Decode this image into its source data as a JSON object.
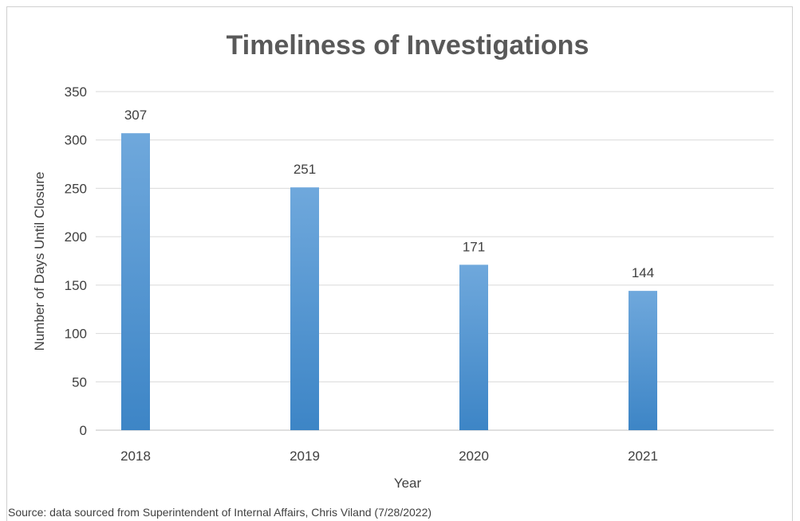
{
  "chart_data": {
    "type": "bar",
    "title": "Timeliness of Investigations",
    "xlabel": "Year",
    "ylabel": "Number of Days Until Closure",
    "categories": [
      "2018",
      "2019",
      "2020",
      "2021"
    ],
    "values": [
      307,
      251,
      171,
      144
    ],
    "data_labels": [
      "307",
      "251",
      "171",
      "144"
    ],
    "ylim": [
      0,
      350
    ],
    "yticks": [
      0,
      50,
      100,
      150,
      200,
      250,
      300,
      350
    ],
    "grid": true,
    "legend": "none",
    "bar_color_top": "#6fa8dc",
    "bar_color_bottom": "#3d85c6"
  },
  "source_note": "Source: data sourced from Superintendent of Internal Affairs, Chris Viland (7/28/2022)"
}
